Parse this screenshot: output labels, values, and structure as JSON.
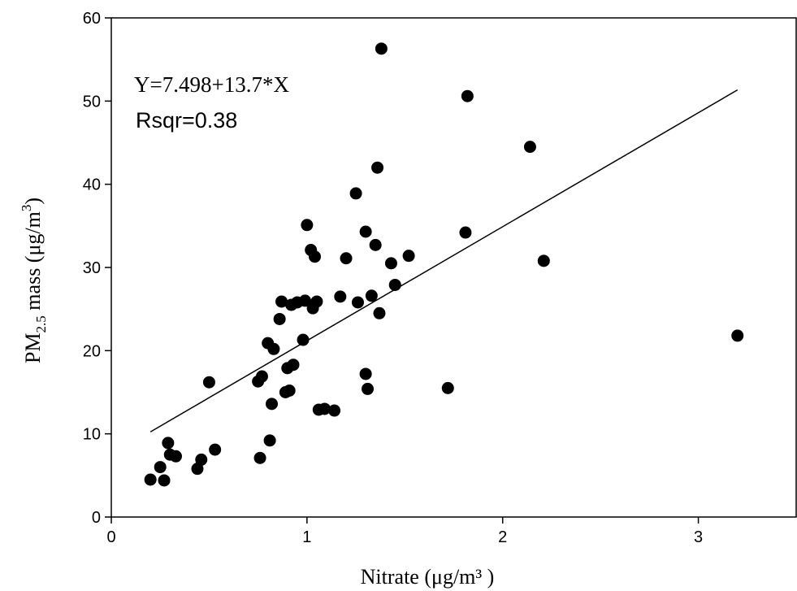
{
  "chart_data": {
    "type": "scatter",
    "xlabel": "Nitrate (μg/m³ )",
    "ylabel_parts": {
      "pre": "PM",
      "sub": "2.5",
      "mid": " mass (μg/m",
      "sup": "3",
      "post": ")"
    },
    "xlim": [
      0,
      3.5
    ],
    "ylim": [
      0,
      60
    ],
    "x_ticks": [
      0,
      1,
      2,
      3
    ],
    "x_tick_labels": [
      "0",
      "1",
      "2",
      "3"
    ],
    "y_ticks": [
      0,
      10,
      20,
      30,
      40,
      50,
      60
    ],
    "y_tick_labels": [
      "0",
      "10",
      "20",
      "30",
      "40",
      "50",
      "60"
    ],
    "grid": false,
    "annotations": {
      "equation": "Y=7.498+13.7*X",
      "rsqr": "Rsqr=0.38"
    },
    "regression": {
      "intercept": 7.498,
      "slope": 13.7,
      "x_range": [
        0.2,
        3.2
      ]
    },
    "points": [
      [
        0.2,
        4.5
      ],
      [
        0.25,
        6.0
      ],
      [
        0.27,
        4.4
      ],
      [
        0.29,
        8.9
      ],
      [
        0.3,
        7.5
      ],
      [
        0.33,
        7.3
      ],
      [
        0.44,
        5.8
      ],
      [
        0.46,
        6.9
      ],
      [
        0.5,
        16.2
      ],
      [
        0.53,
        8.1
      ],
      [
        0.75,
        16.3
      ],
      [
        0.76,
        7.1
      ],
      [
        0.77,
        16.9
      ],
      [
        0.8,
        20.9
      ],
      [
        0.81,
        9.2
      ],
      [
        0.82,
        13.6
      ],
      [
        0.83,
        20.2
      ],
      [
        0.86,
        23.8
      ],
      [
        0.87,
        25.9
      ],
      [
        0.89,
        15.0
      ],
      [
        0.9,
        17.9
      ],
      [
        0.91,
        15.2
      ],
      [
        0.92,
        25.5
      ],
      [
        0.93,
        18.3
      ],
      [
        0.95,
        25.8
      ],
      [
        0.98,
        21.3
      ],
      [
        0.99,
        26.0
      ],
      [
        1.0,
        35.1
      ],
      [
        1.02,
        32.1
      ],
      [
        1.03,
        25.1
      ],
      [
        1.04,
        31.3
      ],
      [
        1.05,
        25.9
      ],
      [
        1.06,
        12.9
      ],
      [
        1.09,
        13.0
      ],
      [
        1.14,
        12.8
      ],
      [
        1.17,
        26.5
      ],
      [
        1.2,
        31.1
      ],
      [
        1.25,
        38.9
      ],
      [
        1.26,
        25.8
      ],
      [
        1.3,
        34.3
      ],
      [
        1.3,
        17.2
      ],
      [
        1.31,
        15.4
      ],
      [
        1.33,
        26.6
      ],
      [
        1.35,
        32.7
      ],
      [
        1.36,
        42.0
      ],
      [
        1.37,
        24.5
      ],
      [
        1.38,
        56.3
      ],
      [
        1.43,
        30.5
      ],
      [
        1.45,
        27.9
      ],
      [
        1.52,
        31.4
      ],
      [
        1.72,
        15.5
      ],
      [
        1.81,
        34.2
      ],
      [
        1.82,
        50.6
      ],
      [
        2.14,
        44.5
      ],
      [
        2.21,
        30.8
      ],
      [
        3.2,
        21.8
      ]
    ]
  }
}
